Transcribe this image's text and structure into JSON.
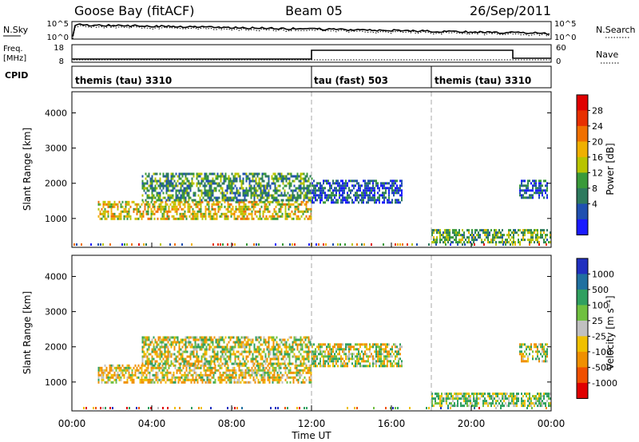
{
  "header": {
    "station": "Goose Bay (fitACF)",
    "beam": "Beam 05",
    "date": "26/Sep/2011"
  },
  "status_panels": {
    "nsky_label": "N.Sky",
    "freq_label_1": "Freq.",
    "freq_label_2": "[MHz]",
    "cpid_label": "CPID",
    "nsearch_label": "N.Search",
    "nave_label": "Nave",
    "nsky_ticks": [
      "10^5",
      "10^0"
    ],
    "nsearch_ticks": [
      "10^5",
      "10^0"
    ],
    "freq_ticks": [
      "18",
      "8"
    ],
    "nave_ticks": [
      "60",
      "0"
    ],
    "cpid_segments": [
      {
        "label": "themis (tau) 3310",
        "start_hour": 0,
        "end_hour": 12
      },
      {
        "label": "tau (fast) 503",
        "start_hour": 12,
        "end_hour": 18
      },
      {
        "label": "themis (tau) 3310",
        "start_hour": 18,
        "end_hour": 24
      }
    ]
  },
  "chart_data": [
    {
      "type": "heatmap",
      "name": "power",
      "ylabel": "Slant Range [km]",
      "xlim": [
        0,
        24
      ],
      "ylim": [
        180,
        4600
      ],
      "yticks": [
        "1000",
        "2000",
        "3000",
        "4000"
      ],
      "colorbar_label": "Power [dB]",
      "colorbar_ticks": [
        "4",
        "8",
        "12",
        "16",
        "20",
        "24",
        "28"
      ],
      "colorbar_colors": [
        "#1a1aff",
        "#2050b0",
        "#2e7a5e",
        "#3a9a3a",
        "#b8c400",
        "#f0b000",
        "#f07000",
        "#e83000",
        "#e00000"
      ],
      "bands": [
        {
          "t0": 1.3,
          "t1": 12,
          "r0": 1000,
          "r1": 1500,
          "value": 20
        },
        {
          "t0": 3.5,
          "t1": 12,
          "r0": 1500,
          "r1": 2300,
          "value": 12
        },
        {
          "t0": 12,
          "t1": 16.5,
          "r0": 1450,
          "r1": 2100,
          "value": 6
        },
        {
          "t0": 18,
          "t1": 24,
          "r0": 350,
          "r1": 700,
          "value": 14
        },
        {
          "t0": 22.4,
          "t1": 23.8,
          "r0": 1600,
          "r1": 2100,
          "value": 8
        }
      ]
    },
    {
      "type": "heatmap",
      "name": "velocity",
      "ylabel": "Slant Range [km]",
      "xlabel": "Time UT",
      "xlim": [
        0,
        24
      ],
      "ylim": [
        180,
        4600
      ],
      "xticks": [
        "00:00",
        "04:00",
        "08:00",
        "12:00",
        "16:00",
        "20:00",
        "00:00"
      ],
      "yticks": [
        "1000",
        "2000",
        "3000",
        "4000"
      ],
      "colorbar_label": "Velocity [m s⁻¹]",
      "colorbar_ticks": [
        "1000",
        "500",
        "100",
        "25",
        "-25",
        "-100",
        "-500",
        "-1000"
      ],
      "colorbar_colors": [
        "#2030c0",
        "#2070a0",
        "#30a060",
        "#70c040",
        "#c0c0c0",
        "#f0c000",
        "#f09000",
        "#f05000",
        "#e00000"
      ],
      "bands": [
        {
          "t0": 1.3,
          "t1": 12,
          "r0": 1000,
          "r1": 1500,
          "value": -60
        },
        {
          "t0": 3.5,
          "t1": 12,
          "r0": 1500,
          "r1": 2300,
          "value": 0
        },
        {
          "t0": 12,
          "t1": 16.5,
          "r0": 1450,
          "r1": 2100,
          "value": 0
        },
        {
          "t0": 18,
          "t1": 24,
          "r0": 350,
          "r1": 700,
          "value": 100
        },
        {
          "t0": 22.4,
          "t1": 23.8,
          "r0": 1600,
          "r1": 2100,
          "value": 0
        }
      ]
    }
  ]
}
